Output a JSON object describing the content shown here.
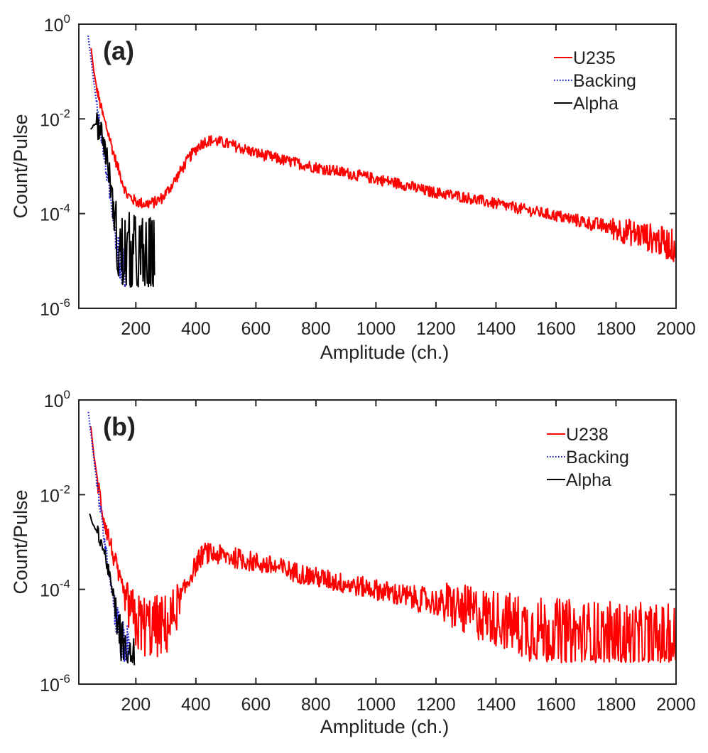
{
  "chart_data": [
    {
      "type": "line",
      "panel_label": "(a)",
      "xlabel": "Amplitude (ch.)",
      "ylabel": "Count/Pulse",
      "xscale": "linear",
      "yscale": "log",
      "xlim": [
        10,
        2000
      ],
      "ylim": [
        1e-06,
        1
      ],
      "xticks": [
        200,
        400,
        600,
        800,
        1000,
        1200,
        1400,
        1600,
        1800,
        2000
      ],
      "xtick_labels": [
        "200",
        "400",
        "600",
        "800",
        "1000",
        "1200",
        "1400",
        "1600",
        "1800",
        "2000"
      ],
      "yticks": [
        1e-06,
        0.0001,
        0.01,
        1
      ],
      "ytick_labels": [
        {
          "base": "10",
          "exp": "-6"
        },
        {
          "base": "10",
          "exp": "-4"
        },
        {
          "base": "10",
          "exp": "-2"
        },
        {
          "base": "10",
          "exp": "0"
        }
      ],
      "grid": false,
      "legend_position": "top-right",
      "series": [
        {
          "name": "U235",
          "color": "#ff0000",
          "style": "solid",
          "noise": 0.12,
          "x": [
            51,
            60,
            75,
            90,
            110,
            130,
            150,
            170,
            200,
            230,
            260,
            290,
            320,
            350,
            380,
            410,
            430,
            449,
            480,
            520,
            600,
            700,
            800,
            900,
            1000,
            1100,
            1166,
            1300,
            1400,
            1500,
            1600,
            1700,
            1800,
            1900,
            2000
          ],
          "y": [
            0.31,
            0.1,
            0.03,
            0.012,
            0.0045,
            0.0015,
            0.0006,
            0.00025,
            0.00018,
            0.00016,
            0.00017,
            0.00022,
            0.0004,
            0.0008,
            0.0016,
            0.0027,
            0.0033,
            0.0035,
            0.0033,
            0.0028,
            0.0019,
            0.0013,
            0.00095,
            0.00072,
            0.00054,
            0.0004,
            0.0003,
            0.00022,
            0.00016,
            0.00012,
            9e-05,
            6.5e-05,
            4.8e-05,
            3.3e-05,
            2e-05
          ]
        },
        {
          "name": "Backing",
          "color": "#1a1acc",
          "style": "dotted",
          "noise": 0.15,
          "x": [
            41,
            50,
            60,
            70,
            80,
            90,
            100,
            110,
            120,
            130,
            140,
            150,
            160,
            165
          ],
          "y": [
            0.57,
            0.2,
            0.06,
            0.02,
            0.007,
            0.0025,
            0.0009,
            0.00035,
            0.00013,
            5e-05,
            2e-05,
            8e-06,
            4.5e-06,
            3e-06
          ]
        },
        {
          "name": "Alpha",
          "color": "#000000",
          "style": "solid",
          "noise": 0.3,
          "x": [
            50,
            60,
            70,
            80,
            90,
            100,
            110,
            120,
            130,
            140,
            150,
            170,
            190,
            210,
            230,
            250,
            262
          ],
          "y": [
            0.006,
            0.0075,
            0.008,
            0.0065,
            0.004,
            0.002,
            0.0008,
            0.00025,
            7e-05,
            2e-05,
            1.2e-05,
            1e-05,
            9e-06,
            8e-06,
            7e-06,
            6e-06,
            5e-06
          ]
        }
      ]
    },
    {
      "type": "line",
      "panel_label": "(b)",
      "xlabel": "Amplitude (ch.)",
      "ylabel": "Count/Pulse",
      "xscale": "linear",
      "yscale": "log",
      "xlim": [
        10,
        2000
      ],
      "ylim": [
        1e-06,
        1
      ],
      "xticks": [
        200,
        400,
        600,
        800,
        1000,
        1200,
        1400,
        1600,
        1800,
        2000
      ],
      "xtick_labels": [
        "200",
        "400",
        "600",
        "800",
        "1000",
        "1200",
        "1400",
        "1600",
        "1800",
        "2000"
      ],
      "yticks": [
        1e-06,
        0.0001,
        0.01,
        1
      ],
      "ytick_labels": [
        {
          "base": "10",
          "exp": "-6"
        },
        {
          "base": "10",
          "exp": "-4"
        },
        {
          "base": "10",
          "exp": "-2"
        },
        {
          "base": "10",
          "exp": "0"
        }
      ],
      "grid": false,
      "legend_position": "top-right",
      "series": [
        {
          "name": "U238",
          "color": "#ff0000",
          "style": "solid",
          "noise": 0.22,
          "x": [
            50,
            60,
            75,
            90,
            110,
            130,
            150,
            170,
            200,
            230,
            260,
            290,
            310,
            330,
            360,
            390,
            410,
            427,
            460,
            520,
            600,
            700,
            800,
            900,
            1000,
            1100,
            1238,
            1300,
            1400,
            1500,
            1600,
            1700,
            1800,
            1900,
            2000
          ],
          "y": [
            0.28,
            0.07,
            0.015,
            0.004,
            0.0012,
            0.0004,
            0.00012,
            5e-05,
            2e-05,
            1.7e-05,
            1.6e-05,
            1.7e-05,
            1.8e-05,
            3.5e-05,
            9e-05,
            0.00025,
            0.00042,
            0.0006,
            0.00055,
            0.00048,
            0.00037,
            0.00026,
            0.00018,
            0.00013,
            0.0001,
            7e-05,
            4.8e-05,
            3.5e-05,
            2.5e-05,
            1.5e-05,
            1.2e-05,
            1e-05,
            9e-06,
            8e-06,
            7e-06
          ]
        },
        {
          "name": "Backing",
          "color": "#1a1acc",
          "style": "dotted",
          "noise": 0.15,
          "x": [
            42,
            50,
            60,
            70,
            80,
            90,
            100,
            110,
            120,
            130,
            140,
            150,
            160,
            170,
            178
          ],
          "y": [
            0.55,
            0.2,
            0.06,
            0.018,
            0.006,
            0.002,
            0.0007,
            0.00025,
            0.0001,
            4e-05,
            1.8e-05,
            9e-06,
            6e-06,
            4.5e-06,
            4e-06
          ]
        },
        {
          "name": "Alpha",
          "color": "#000000",
          "style": "solid",
          "noise": 0.15,
          "x": [
            46,
            55,
            65,
            75,
            85,
            95,
            105,
            115,
            125,
            135,
            145,
            155,
            165,
            175,
            185,
            195
          ],
          "y": [
            0.004,
            0.0025,
            0.0019,
            0.0015,
            0.001,
            0.0006,
            0.00032,
            0.00015,
            7e-05,
            3e-05,
            1.2e-05,
            6e-06,
            3e-06,
            2.5e-06,
            2e-06,
            2.5e-06
          ]
        }
      ]
    }
  ]
}
